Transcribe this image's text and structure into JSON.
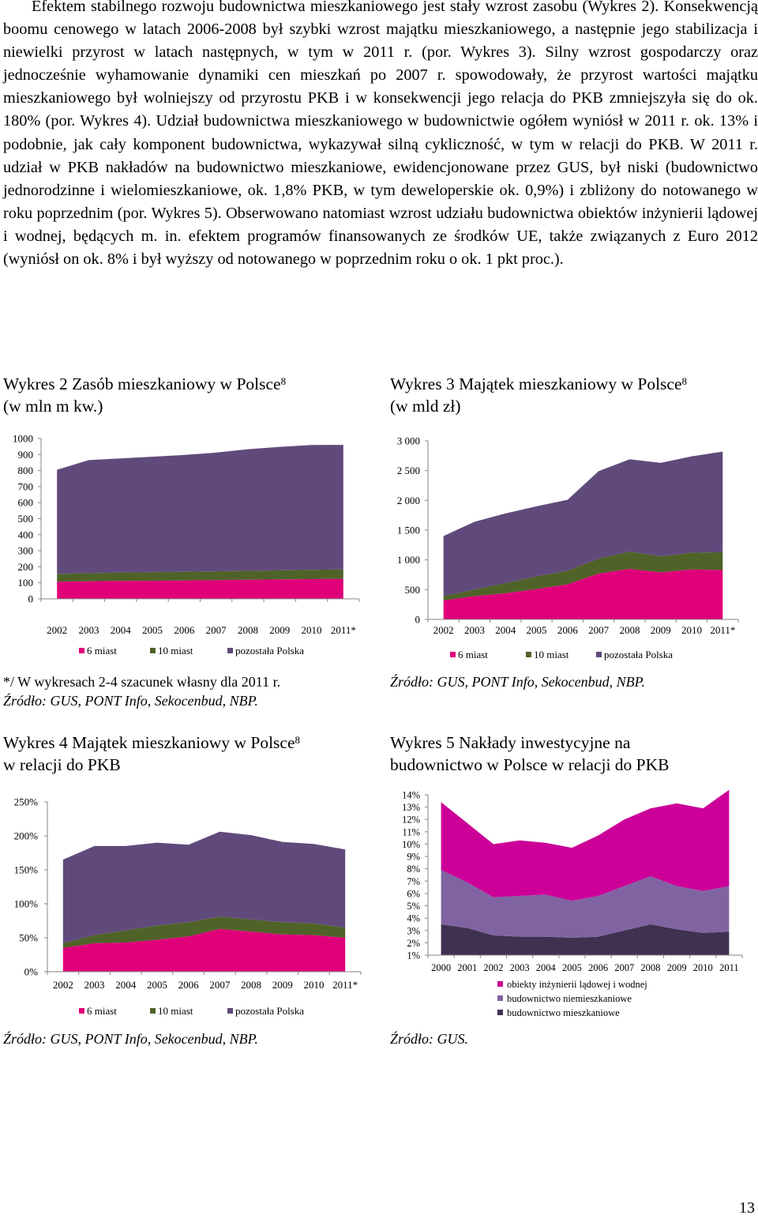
{
  "body_text": [
    "Efektem stabilnego rozwoju budownictwa mieszkaniowego jest stały wzrost zasobu (Wykres 2). Konsekwencją boomu cenowego w latach 2006-2008 był szybki wzrost majątku mieszkaniowego, a następnie jego stabilizacja i niewielki przyrost w latach następnych, w tym w 2011 r. (por. Wykres 3). Silny wzrost gospodarczy oraz jednocześnie wyhamowanie dynamiki cen mieszkań po 2007 r. spowodowały, że przyrost wartości majątku mieszkaniowego był wolniejszy od przyrostu PKB i w konsekwencji jego relacja do PKB zmniejszyła się do ok. 180% (por. Wykres 4). Udział budownictwa mieszkaniowego w budownictwie ogółem wyniósł w 2011 r. ok. 13% i podobnie, jak cały komponent budownictwa, wykazywał silną cykliczność, w tym w relacji do PKB. W 2011 r. udział w PKB nakładów na budownictwo mieszkaniowe, ewidencjonowane przez GUS, był niski (budownictwo jednorodzinne i wielomieszkaniowe, ok. 1,8% PKB, w tym deweloperskie ok. 0,9%) i zbliżony do notowanego w roku poprzednim (por. Wykres 5). Obserwowano natomiast wzrost udziału budownictwa obiektów inżynierii lądowej i wodnej, będących m. in. efektem programów finansowanych ze środków UE, także związanych z Euro 2012 (wyniósł on ok. 8% i był wyższy od notowanego w poprzednim roku o ok. 1 pkt proc.)."
  ],
  "charts": {
    "c2": {
      "title_line1": "Wykres 2 Zasób mieszkaniowy w Polsce",
      "sup": "8",
      "title_line2": "(w mln m kw.)"
    },
    "c3": {
      "title_line1": "Wykres 3 Majątek mieszkaniowy w Polsce",
      "sup": "8",
      "title_line2": "(w mld zł)"
    },
    "c4": {
      "title_line1": "Wykres 4 Majątek mieszkaniowy w Polsce",
      "sup": "8",
      "title_line2": "w relacji do PKB"
    },
    "c5": {
      "title_line1": "Wykres 5 Nakłady inwestycyjne na",
      "title_line2": "budownictwo w Polsce w relacji do PKB"
    }
  },
  "notes": {
    "c2_note": "*/ W wykresach 2-4 szacunek własny dla 2011 r.",
    "c2_source": "Źródło: GUS, PONT Info, Sekocenbud, NBP.",
    "c3_source": "Źródło: GUS, PONT Info, Sekocenbud, NBP.",
    "c4_source": "Źródło: GUS, PONT Info, Sekocenbud, NBP.",
    "c5_source": "Źródło: GUS."
  },
  "page_number": "13",
  "colors": {
    "magenta": "#E0007A",
    "green": "#4F6228",
    "purple": "#604A7B",
    "lavender": "#8064A2",
    "deep_magenta": "#CC0099",
    "dark_purple": "#403151",
    "axis": "#868686"
  },
  "chart_data": [
    {
      "id": "c2",
      "type": "area",
      "stacked": true,
      "x": [
        "2002",
        "2003",
        "2004",
        "2005",
        "2006",
        "2007",
        "2008",
        "2009",
        "2010",
        "2011*"
      ],
      "ylim": [
        0,
        1000
      ],
      "yticks": [
        0,
        100,
        200,
        300,
        400,
        500,
        600,
        700,
        800,
        900,
        1000
      ],
      "series": [
        {
          "name": "6 miast",
          "color": "#E0007A",
          "values": [
            107,
            110,
            112,
            113,
            115,
            117,
            119,
            121,
            123,
            125
          ]
        },
        {
          "name": "10 miast",
          "color": "#4F6228",
          "values": [
            48,
            50,
            52,
            53,
            54,
            55,
            56,
            57,
            58,
            59
          ]
        },
        {
          "name": "pozostała Polska",
          "color": "#604A7B",
          "values": [
            650,
            705,
            712,
            720,
            728,
            740,
            758,
            770,
            778,
            776
          ]
        }
      ],
      "legend": "bottom"
    },
    {
      "id": "c3",
      "type": "area",
      "stacked": true,
      "x": [
        "2002",
        "2003",
        "2004",
        "2005",
        "2006",
        "2007",
        "2008",
        "2009",
        "2010",
        "2011*"
      ],
      "ylim": [
        0,
        3000
      ],
      "yticks": [
        0,
        500,
        1000,
        1500,
        2000,
        2500,
        3000
      ],
      "ytick_labels": [
        "0",
        "500",
        "1 000",
        "1 500",
        "2 000",
        "2 500",
        "3 000"
      ],
      "series": [
        {
          "name": "6 miast",
          "color": "#E0007A",
          "values": [
            320,
            390,
            440,
            510,
            590,
            770,
            850,
            790,
            840,
            830
          ]
        },
        {
          "name": "10 miast",
          "color": "#4F6228",
          "values": [
            70,
            110,
            170,
            210,
            230,
            250,
            290,
            270,
            280,
            300
          ]
        },
        {
          "name": "pozostała Polska",
          "color": "#604A7B",
          "values": [
            1010,
            1140,
            1170,
            1180,
            1190,
            1470,
            1550,
            1570,
            1620,
            1690
          ]
        }
      ],
      "legend": "bottom"
    },
    {
      "id": "c4",
      "type": "area",
      "stacked": true,
      "x": [
        "2002",
        "2003",
        "2004",
        "2005",
        "2006",
        "2007",
        "2008",
        "2009",
        "2010",
        "2011*"
      ],
      "ylim": [
        0,
        250
      ],
      "yticks": [
        0,
        50,
        100,
        150,
        200,
        250
      ],
      "ytick_labels": [
        "0%",
        "50%",
        "100%",
        "150%",
        "200%",
        "250%"
      ],
      "series": [
        {
          "name": "6 miast",
          "color": "#E0007A",
          "values": [
            35,
            42,
            43,
            47,
            52,
            63,
            59,
            55,
            54,
            50
          ]
        },
        {
          "name": "10 miast",
          "color": "#4F6228",
          "values": [
            7,
            12,
            18,
            21,
            21,
            18,
            18,
            18,
            17,
            15
          ]
        },
        {
          "name": "pozostała Polska",
          "color": "#604A7B",
          "values": [
            123,
            131,
            124,
            122,
            114,
            125,
            124,
            118,
            117,
            115
          ]
        }
      ],
      "legend": "bottom"
    },
    {
      "id": "c5",
      "type": "area",
      "stacked": true,
      "x": [
        "2000",
        "2001",
        "2002",
        "2003",
        "2004",
        "2005",
        "2006",
        "2007",
        "2008",
        "2009",
        "2010",
        "2011"
      ],
      "ylim": [
        1,
        14
      ],
      "yticks": [
        1,
        2,
        3,
        4,
        5,
        6,
        7,
        8,
        9,
        10,
        11,
        12,
        13,
        14
      ],
      "ytick_labels": [
        "1%",
        "2%",
        "3%",
        "4%",
        "5%",
        "6%",
        "7%",
        "8%",
        "9%",
        "10%",
        "11%",
        "12%",
        "13%",
        "14%"
      ],
      "series": [
        {
          "name": "budownictwo mieszkaniowe",
          "color": "#403151",
          "values": [
            2.5,
            2.2,
            1.6,
            1.5,
            1.5,
            1.4,
            1.5,
            2.0,
            2.5,
            2.1,
            1.8,
            1.9
          ]
        },
        {
          "name": "budownictwo niemieszkaniowe",
          "color": "#8064A2",
          "values": [
            4.4,
            3.7,
            3.1,
            3.3,
            3.4,
            3.0,
            3.3,
            3.6,
            3.9,
            3.5,
            3.4,
            3.7
          ]
        },
        {
          "name": "obiekty inżynierii lądowej i wodnej",
          "color": "#CC0099",
          "values": [
            5.5,
            4.8,
            4.3,
            4.5,
            4.2,
            4.3,
            4.9,
            5.4,
            5.5,
            6.7,
            6.7,
            7.8
          ]
        }
      ],
      "legend": "bottom"
    }
  ]
}
